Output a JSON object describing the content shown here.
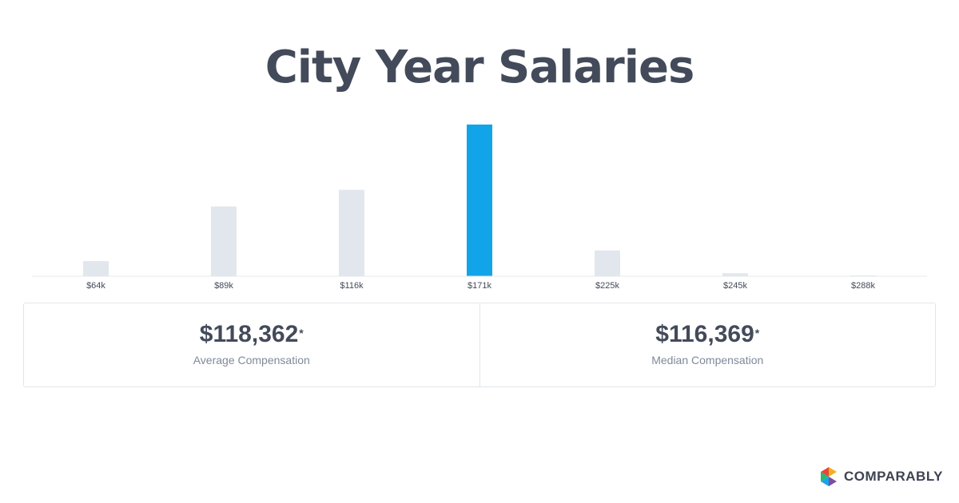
{
  "page": {
    "title": "City Year Salaries"
  },
  "stats": [
    {
      "value": "$118,362",
      "marker": "*",
      "label": "Average Compensation"
    },
    {
      "value": "$116,369",
      "marker": "*",
      "label": "Median Compensation"
    }
  ],
  "brand": {
    "name": "COMPARABLY",
    "logo_colors": [
      "#f2b01e",
      "#e8453c",
      "#2bb673",
      "#1aa3e8",
      "#7b4fa0"
    ]
  },
  "chart_data": {
    "type": "bar",
    "categories": [
      "$64k",
      "$89k",
      "$116k",
      "$171k",
      "$225k",
      "$245k",
      "$288k"
    ],
    "values": [
      10,
      46,
      57,
      100,
      17,
      2,
      0.5
    ],
    "highlight_index": 3,
    "ylim": [
      0,
      100
    ],
    "grid": false,
    "colors": {
      "bar": "#e1e7ed",
      "highlight": "#12a4e8",
      "baseline": "#e6e9ed",
      "tick_label": "#434a5a"
    }
  }
}
